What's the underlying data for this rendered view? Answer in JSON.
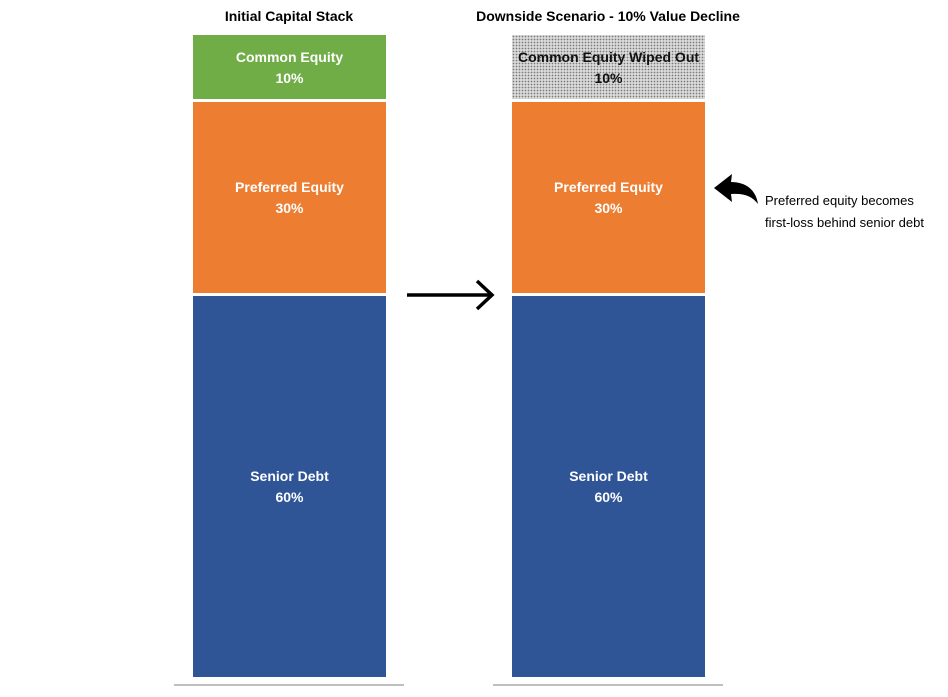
{
  "chart_data": [
    {
      "type": "stacked-bar",
      "title": "Initial Capital Stack",
      "total": 100,
      "segments": [
        {
          "name": "Common Equity",
          "label": "Common Equity",
          "value": 10,
          "value_label": "10%",
          "color": "#70ad47",
          "kind": "common"
        },
        {
          "name": "Preferred Equity",
          "label": "Preferred Equity",
          "value": 30,
          "value_label": "30%",
          "color": "#ed7d31",
          "kind": "preferred"
        },
        {
          "name": "Senior Debt",
          "label": "Senior Debt",
          "value": 60,
          "value_label": "60%",
          "color": "#2f5597",
          "kind": "debt"
        }
      ]
    },
    {
      "type": "stacked-bar",
      "title": "Downside Scenario - 10% Value Decline",
      "total": 100,
      "segments": [
        {
          "name": "Common Equity",
          "label": "Common Equity Wiped Out",
          "value": 10,
          "value_label": "10%",
          "color": "#d9d9d9",
          "kind": "wiped"
        },
        {
          "name": "Preferred Equity",
          "label": "Preferred Equity",
          "value": 30,
          "value_label": "30%",
          "color": "#ed7d31",
          "kind": "preferred"
        },
        {
          "name": "Senior Debt",
          "label": "Senior Debt",
          "value": 60,
          "value_label": "60%",
          "color": "#2f5597",
          "kind": "debt"
        }
      ]
    }
  ],
  "annotation": {
    "line1": "Preferred equity becomes",
    "line2": "first-loss behind senior debt"
  },
  "colors": {
    "arrow": "#000000",
    "baseline": "#bfbfbf"
  },
  "icons": {
    "flow": "right-arrow-icon",
    "callout": "curved-arrow-icon"
  }
}
